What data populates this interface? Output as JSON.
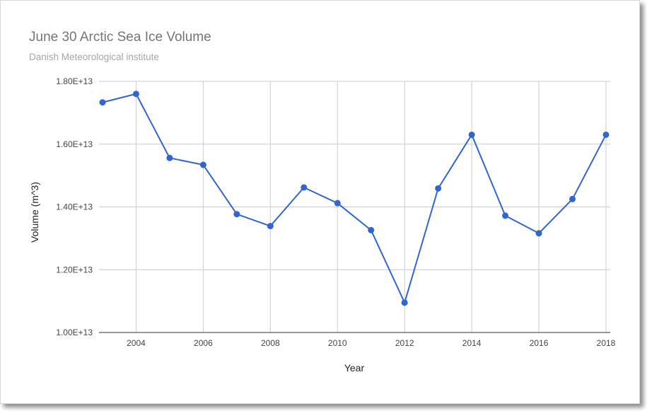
{
  "chart_data": {
    "type": "line",
    "title": "June 30 Arctic Sea Ice Volume",
    "subtitle": "Danish Meteorological institute",
    "xlabel": "Year",
    "ylabel": "Volume (m^3)",
    "xlim": [
      2003,
      2018
    ],
    "ylim": [
      10000000000000.0,
      18000000000000.0
    ],
    "x_ticks": [
      2004,
      2006,
      2008,
      2010,
      2012,
      2014,
      2016,
      2018
    ],
    "x_tick_labels": [
      "2004",
      "2006",
      "2008",
      "2010",
      "2012",
      "2014",
      "2016",
      "2018"
    ],
    "y_ticks": [
      10000000000000.0,
      12000000000000.0,
      14000000000000.0,
      16000000000000.0,
      18000000000000.0
    ],
    "y_tick_labels": [
      "1.00E+13",
      "1.20E+13",
      "1.40E+13",
      "1.60E+13",
      "1.80E+13"
    ],
    "grid": true,
    "legend": "none",
    "series": [
      {
        "color": "#3366cc",
        "points": [
          {
            "x": 2003,
            "y": 17330000000000.0
          },
          {
            "x": 2004,
            "y": 17600000000000.0
          },
          {
            "x": 2005,
            "y": 15560000000000.0
          },
          {
            "x": 2006,
            "y": 15340000000000.0
          },
          {
            "x": 2007,
            "y": 13770000000000.0
          },
          {
            "x": 2008,
            "y": 13390000000000.0
          },
          {
            "x": 2009,
            "y": 14620000000000.0
          },
          {
            "x": 2010,
            "y": 14120000000000.0
          },
          {
            "x": 2011,
            "y": 13260000000000.0
          },
          {
            "x": 2012,
            "y": 10950000000000.0
          },
          {
            "x": 2013,
            "y": 14590000000000.0
          },
          {
            "x": 2014,
            "y": 16300000000000.0
          },
          {
            "x": 2015,
            "y": 13720000000000.0
          },
          {
            "x": 2016,
            "y": 13160000000000.0
          },
          {
            "x": 2017,
            "y": 14250000000000.0
          },
          {
            "x": 2018,
            "y": 16300000000000.0
          }
        ]
      }
    ]
  }
}
